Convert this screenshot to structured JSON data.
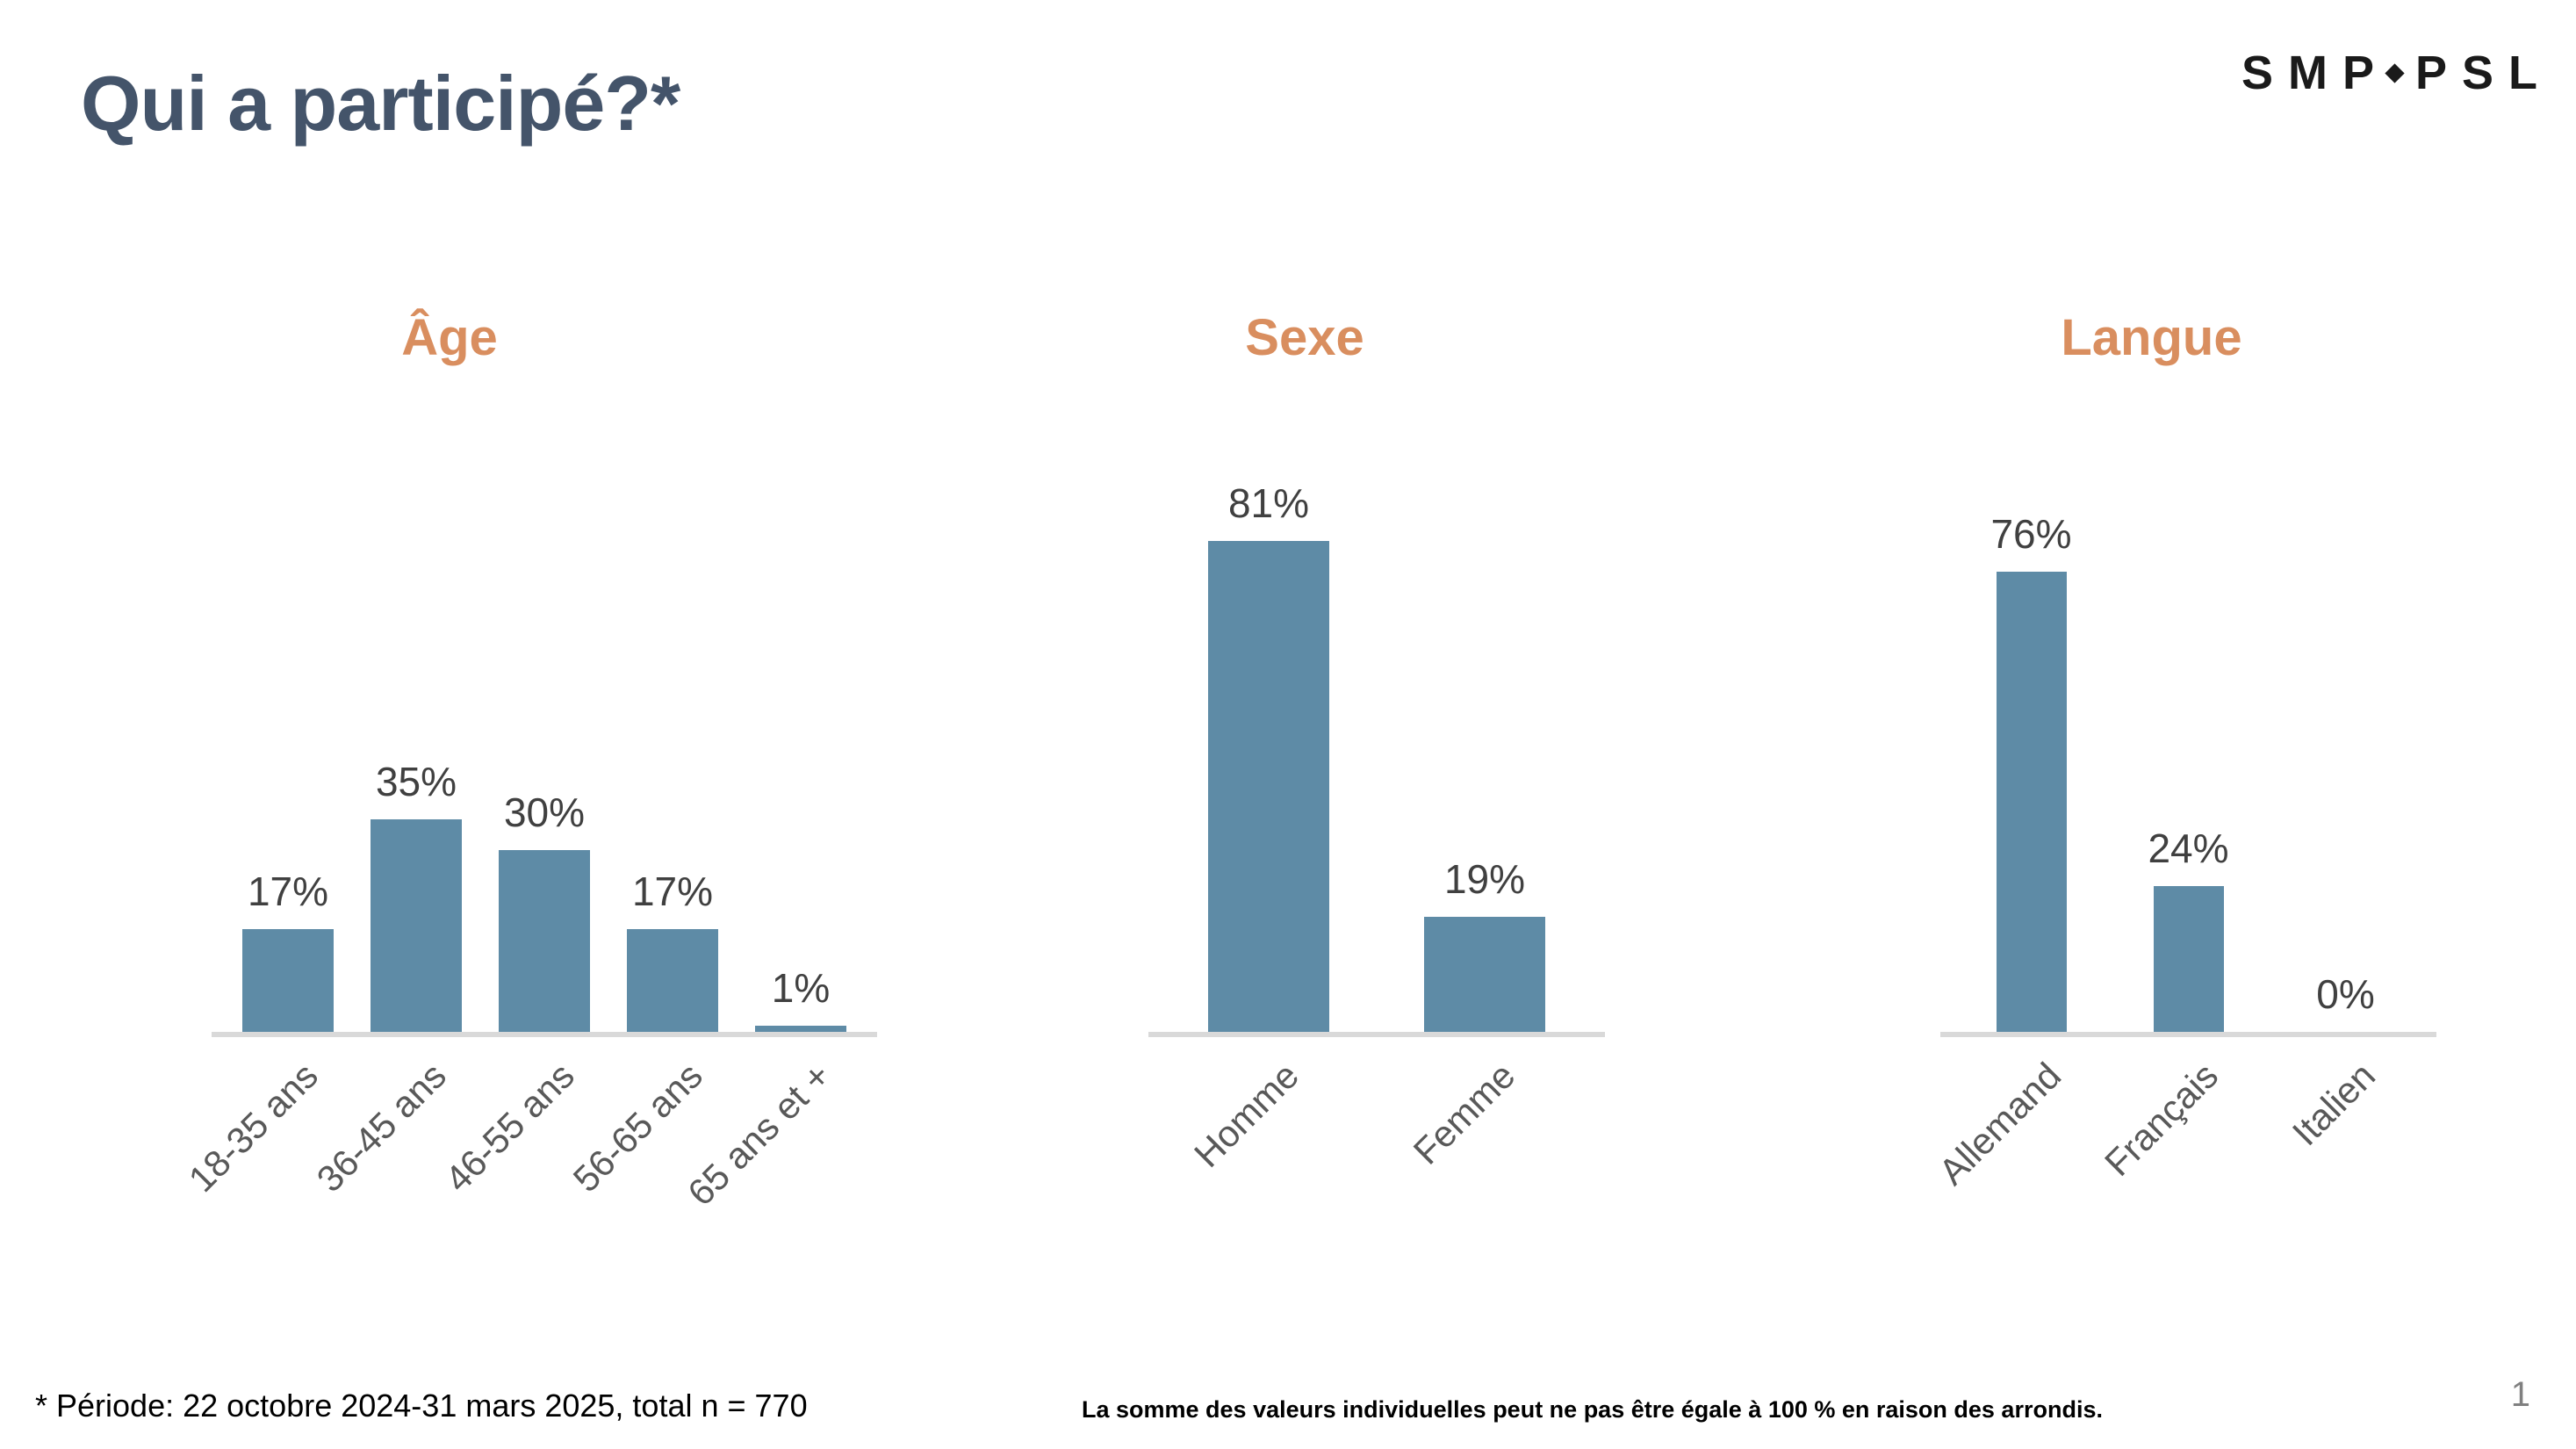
{
  "page": {
    "title": "Qui a participé?*",
    "logo": {
      "part1": "SMP",
      "separator": "diamond",
      "part2": "PSL"
    },
    "footnote": "* Période: 22 octobre 2024-31 mars 2025, total n = 770",
    "disclaimer": "La somme des valeurs individuelles peut ne pas être égale à 100 % en raison des arrondis.",
    "page_number": "1"
  },
  "colors": {
    "title": "#44546A",
    "chart_title": "#D98E5F",
    "bar": "#5E8BA6",
    "axis_line": "#D9D9D9",
    "value_label": "#404040",
    "category_label": "#595959",
    "page_number": "#808080",
    "logo": "#1A1A1A"
  },
  "chart_data": [
    {
      "type": "bar",
      "title": "Âge",
      "categories": [
        "18-35 ans",
        "36-45 ans",
        "46-55 ans",
        "56-65 ans",
        "65 ans et +"
      ],
      "values": [
        17,
        35,
        30,
        17,
        1
      ],
      "value_labels": [
        "17%",
        "35%",
        "30%",
        "17%",
        "1%"
      ],
      "unit": "%",
      "ylim": [
        0,
        40
      ],
      "grid": false,
      "legend": false,
      "y_axis_visible": false,
      "data_labels_visible": true,
      "category_label_rotation_deg": 45
    },
    {
      "type": "bar",
      "title": "Sexe",
      "categories": [
        "Homme",
        "Femme"
      ],
      "values": [
        81,
        19
      ],
      "value_labels": [
        "81%",
        "19%"
      ],
      "unit": "%",
      "ylim": [
        0,
        90
      ],
      "grid": false,
      "legend": false,
      "y_axis_visible": false,
      "data_labels_visible": true,
      "category_label_rotation_deg": 45
    },
    {
      "type": "bar",
      "title": "Langue",
      "categories": [
        "Allemand",
        "Français",
        "Italien"
      ],
      "values": [
        76,
        24,
        0
      ],
      "value_labels": [
        "76%",
        "24%",
        "0%"
      ],
      "unit": "%",
      "ylim": [
        0,
        80
      ],
      "grid": false,
      "legend": false,
      "y_axis_visible": false,
      "data_labels_visible": true,
      "category_label_rotation_deg": 45
    }
  ]
}
